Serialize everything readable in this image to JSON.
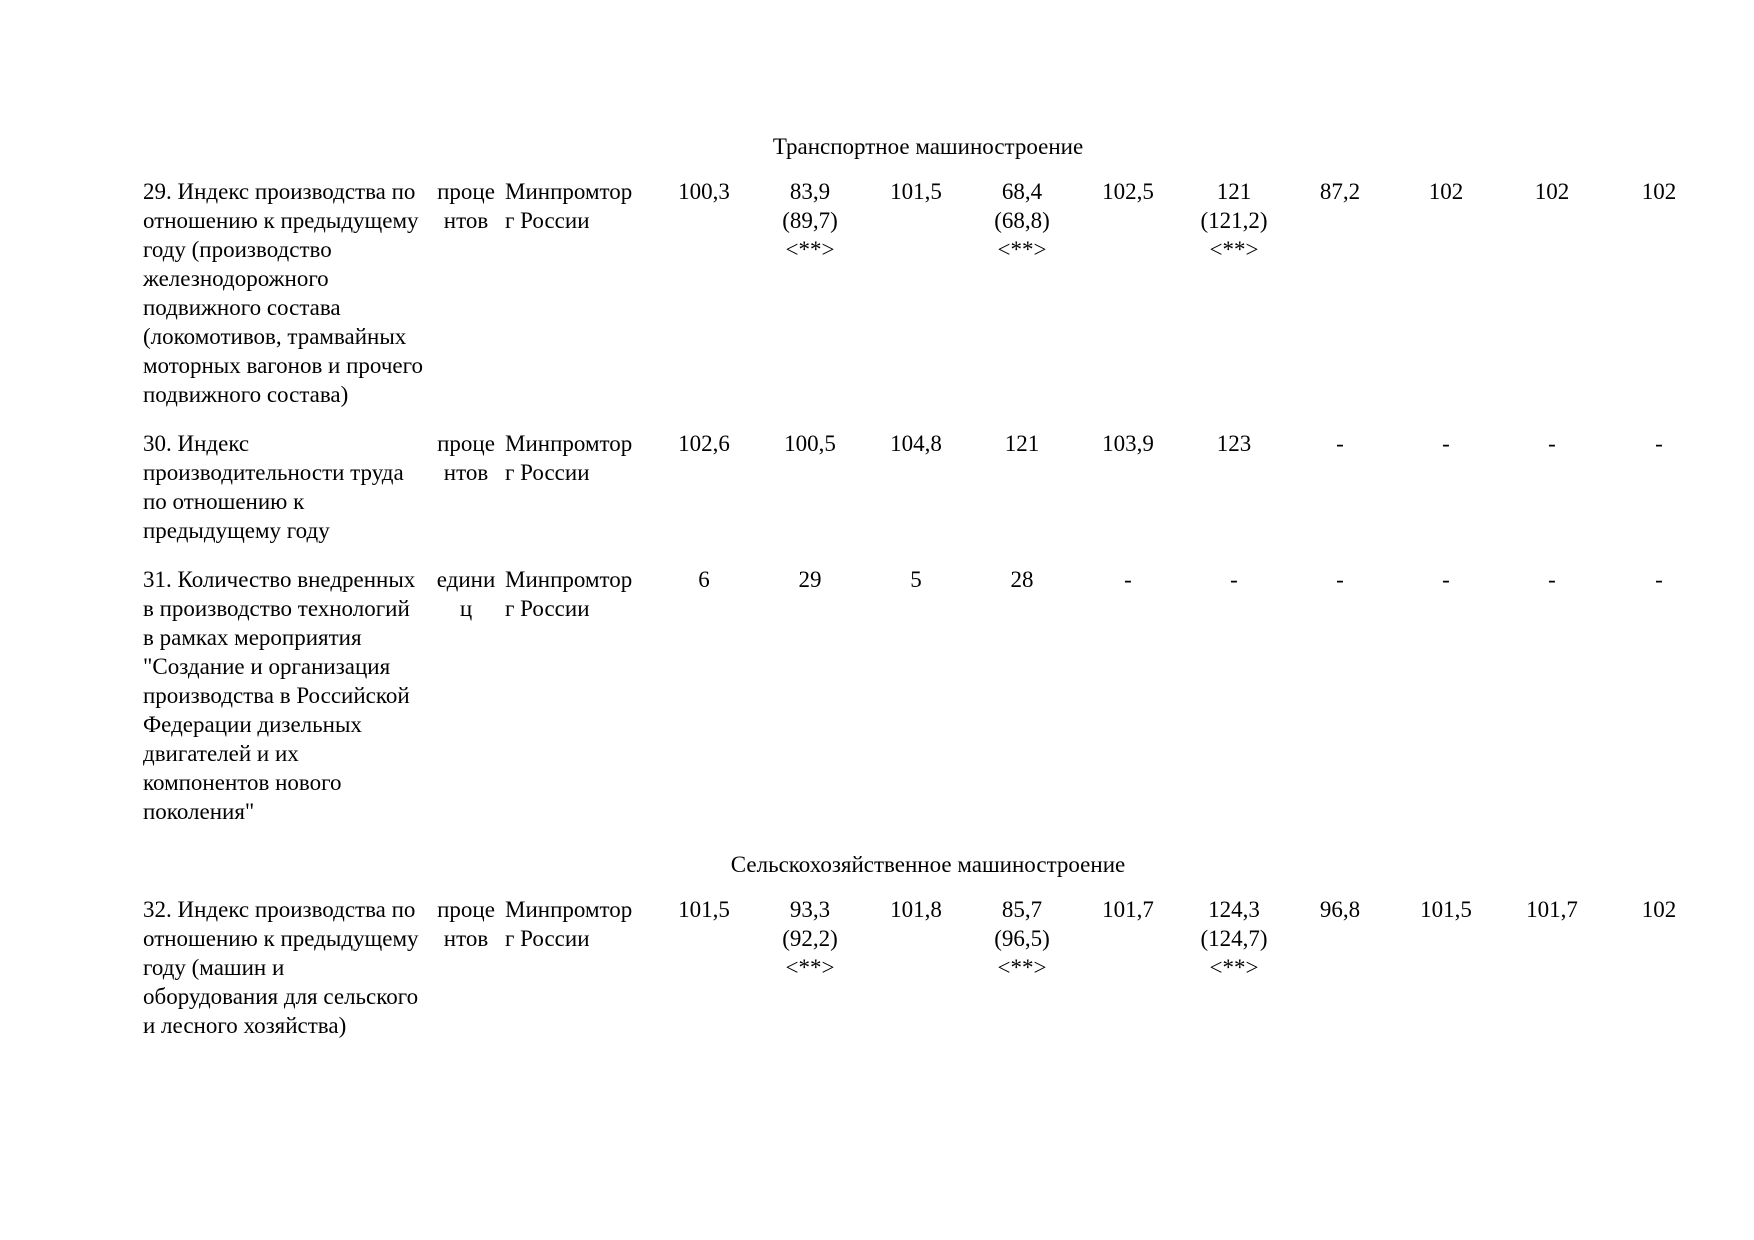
{
  "sections": [
    {
      "title": "Транспортное машиностроение",
      "rows": [
        {
          "name": "29. Индекс производства по отношению к предыдущему году (производство железнодорожного подвижного состава (локомотивов, трамвайных моторных вагонов и прочего подвижного состава)",
          "unit": "процентов",
          "org": "Минпромторг России",
          "values": [
            "100,3",
            "83,9 (89,7) <**>",
            "101,5",
            "68,4 (68,8) <**>",
            "102,5",
            "121 (121,2) <**>",
            "87,2",
            "102",
            "102",
            "102"
          ]
        },
        {
          "name": "30. Индекс производительности труда по отношению к предыдущему году",
          "unit": "процентов",
          "org": "Минпромторг России",
          "values": [
            "102,6",
            "100,5",
            "104,8",
            "121",
            "103,9",
            "123",
            "-",
            "-",
            "-",
            "-"
          ]
        },
        {
          "name": "31. Количество внедренных в производство технологий в рамках мероприятия \"Создание и организация производства в Российской Федерации дизельных двигателей и их компонентов нового поколения\"",
          "unit": "единиц",
          "org": "Минпромторг России",
          "values": [
            "6",
            "29",
            "5",
            "28",
            "-",
            "-",
            "-",
            "-",
            "-",
            "-"
          ]
        }
      ]
    },
    {
      "title": "Сельскохозяйственное машиностроение",
      "rows": [
        {
          "name": "32. Индекс производства по отношению к предыдущему году (машин и оборудования для сельского и лесного хозяйства)",
          "unit": "процентов",
          "org": "Минпромторг России",
          "values": [
            "101,5",
            "93,3 (92,2) <**>",
            "101,8",
            "85,7 (96,5) <**>",
            "101,7",
            "124,3 (124,7) <**>",
            "96,8",
            "101,5",
            "101,7",
            "102"
          ]
        }
      ]
    }
  ]
}
